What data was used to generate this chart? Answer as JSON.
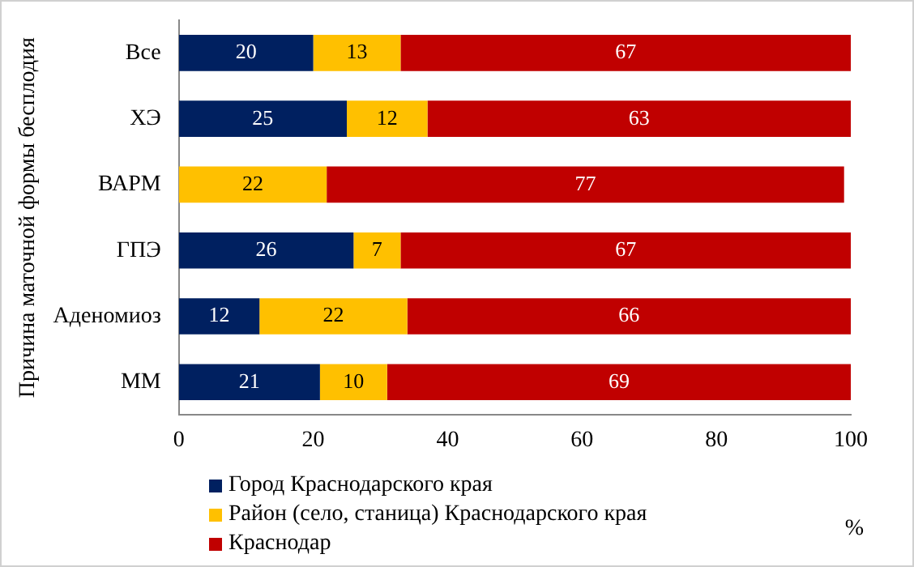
{
  "chart_data": {
    "type": "bar",
    "orientation": "horizontal",
    "stacked": true,
    "ylabel": "Причина маточной формы бесплодия",
    "xlabel": "%",
    "categories": [
      "Все",
      "ХЭ",
      "ВАРМ",
      "ГПЭ",
      "Аденомиоз",
      "ММ"
    ],
    "series": [
      {
        "name": "Город Краснодарского края",
        "color": "#002060",
        "values": [
          20,
          25,
          null,
          26,
          12,
          21
        ]
      },
      {
        "name": "Район (село, станица) Краснодарского края",
        "color": "#ffc000",
        "values": [
          13,
          12,
          22,
          7,
          22,
          10
        ]
      },
      {
        "name": "Краснодар",
        "color": "#c00000",
        "values": [
          67,
          63,
          77,
          67,
          66,
          69
        ]
      }
    ],
    "xlim": [
      0,
      100
    ],
    "xticks": [
      0,
      20,
      40,
      60,
      80,
      100
    ],
    "data_labels": true,
    "legend": "bottom left"
  }
}
